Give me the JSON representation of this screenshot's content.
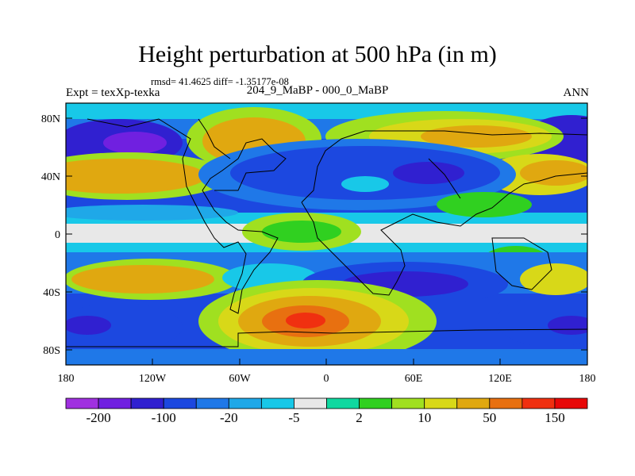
{
  "title": "Height perturbation at 500 hPa (in m)",
  "stats_line": "rmsd= 41.4625 diff= -1.35177e-08",
  "left_label": "Expt = texXp-texka",
  "center_label": "204_9_MaBP - 000_0_MaBP",
  "right_label": "ANN",
  "lat_ticks": [
    "80N",
    "40N",
    "0",
    "40S",
    "80S"
  ],
  "lon_ticks": [
    "180",
    "120W",
    "60W",
    "0",
    "60E",
    "120E",
    "180"
  ],
  "colorbar": {
    "colors": [
      "#a030e0",
      "#7020e0",
      "#3020d0",
      "#1c48e0",
      "#1f78e8",
      "#1fa8e8",
      "#18c8e8",
      "#e8e8e8",
      "#10d8a0",
      "#30d020",
      "#a0e020",
      "#d8d818",
      "#e0a810",
      "#e87010",
      "#f03010",
      "#e80808"
    ],
    "labels": [
      "-200",
      "-100",
      "-20",
      "-5",
      "2",
      "10",
      "50",
      "150"
    ]
  }
}
